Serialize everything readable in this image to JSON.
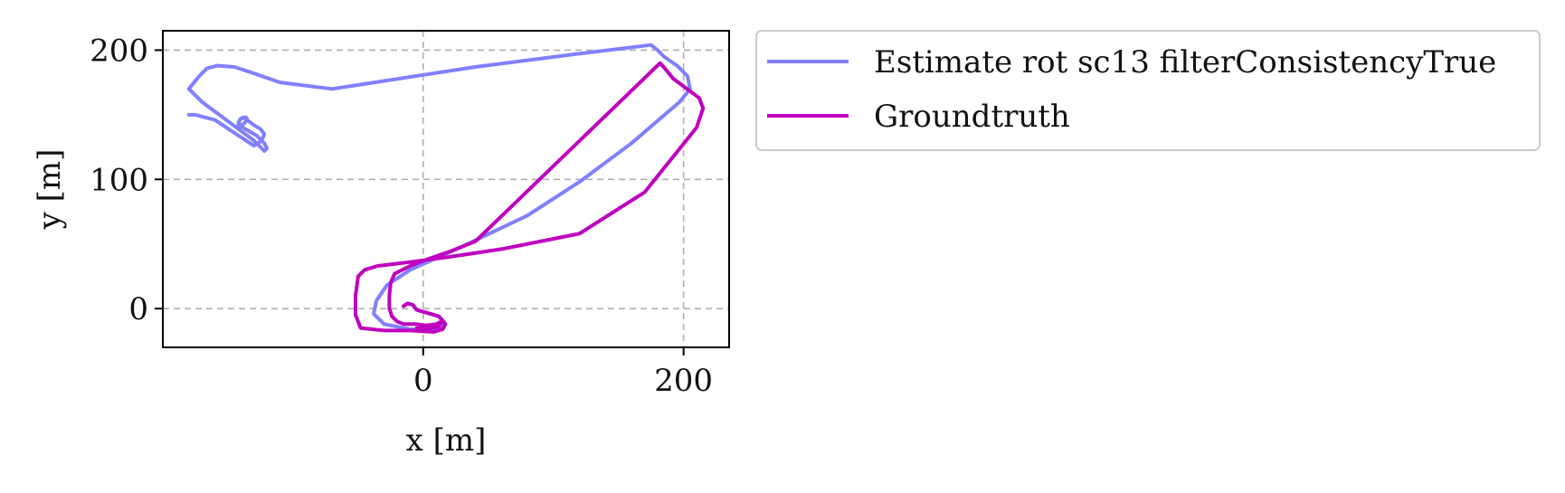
{
  "chart_data": {
    "type": "line",
    "title": "",
    "xlabel": "x [m]",
    "ylabel": "y [m]",
    "xlim": [
      -200,
      235
    ],
    "ylim": [
      -30,
      215
    ],
    "xticks": [
      0,
      200
    ],
    "yticks": [
      0,
      100,
      200
    ],
    "xtick_labels": [
      "0",
      "200"
    ],
    "ytick_labels": [
      "0",
      "100",
      "200"
    ],
    "grid": true,
    "legend_position": "outside-right-top",
    "series": [
      {
        "name": "Estimate rot sc13 filterConsistencyTrue",
        "color": "#8080ff",
        "x": [
          -15,
          -12,
          -8,
          -5,
          2,
          12,
          16,
          15,
          8,
          -10,
          -30,
          -38,
          -36,
          -28,
          -10,
          30,
          80,
          120,
          160,
          197,
          205,
          203,
          195,
          185,
          180,
          175,
          110,
          40,
          -70,
          -110,
          -130,
          -145,
          -158,
          -166,
          -172,
          -180,
          -170,
          -130,
          -122,
          -120,
          -122,
          -128,
          -135,
          -140,
          -142,
          -140,
          -136,
          -135,
          -138,
          -141,
          -142,
          -141,
          -138,
          -130,
          -125,
          -122,
          -124,
          -130,
          -145,
          -160,
          -175,
          -180
        ],
        "y": [
          2,
          4,
          3,
          -1,
          -3,
          -6,
          -10,
          -14,
          -16,
          -16,
          -12,
          -4,
          6,
          18,
          30,
          48,
          72,
          98,
          128,
          160,
          170,
          180,
          188,
          195,
          200,
          204,
          196,
          187,
          170,
          175,
          182,
          187,
          188,
          186,
          180,
          170,
          160,
          130,
          122,
          124,
          128,
          134,
          138,
          141,
          144,
          147,
          148,
          146,
          143,
          140,
          142,
          146,
          148,
          142,
          139,
          135,
          130,
          126,
          136,
          146,
          150,
          150
        ]
      },
      {
        "name": "Groundtruth",
        "color": "#bf00bf",
        "x": [
          -15,
          -12,
          -8,
          -5,
          2,
          12,
          17,
          15,
          8,
          -10,
          -30,
          -48,
          -52,
          -52,
          -50,
          -45,
          -35,
          -10,
          20,
          60,
          120,
          170,
          210,
          215,
          212,
          200,
          192,
          188,
          182,
          40,
          20,
          0,
          -10,
          -22,
          -25,
          -26,
          -26,
          -24,
          -20,
          -15,
          -10,
          -5,
          2,
          10,
          14,
          12,
          5,
          -5
        ],
        "y": [
          2,
          4,
          3,
          -1,
          -3,
          -6,
          -12,
          -16,
          -18,
          -17,
          -17,
          -15,
          -5,
          10,
          25,
          30,
          33,
          36,
          40,
          46,
          58,
          90,
          140,
          155,
          163,
          172,
          178,
          183,
          190,
          52,
          44,
          37,
          33,
          27,
          20,
          10,
          0,
          -6,
          -10,
          -12,
          -12,
          -12,
          -13,
          -12,
          -10,
          -14,
          -15,
          -15
        ]
      }
    ]
  }
}
